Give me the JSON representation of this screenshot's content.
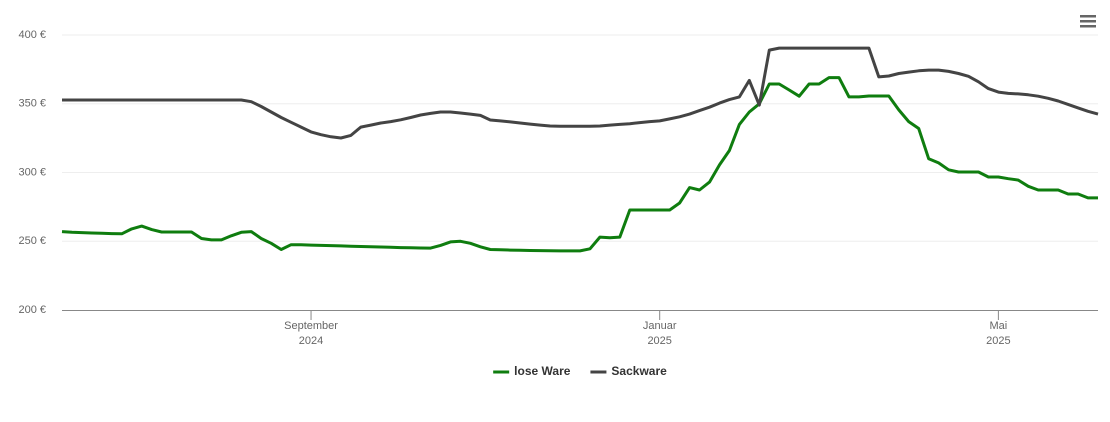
{
  "chart_data": {
    "type": "line",
    "categories": [
      null,
      null,
      null,
      null,
      null,
      null,
      null,
      null,
      null,
      null,
      null,
      null,
      null,
      null,
      null,
      null,
      null,
      null,
      null,
      null,
      null,
      null,
      null,
      null,
      null,
      [
        "September",
        "2024"
      ],
      null,
      null,
      null,
      null,
      null,
      null,
      null,
      null,
      null,
      null,
      null,
      null,
      null,
      null,
      null,
      null,
      null,
      null,
      null,
      null,
      null,
      null,
      null,
      null,
      null,
      null,
      null,
      null,
      null,
      null,
      null,
      null,
      null,
      null,
      [
        "Januar",
        "2025"
      ],
      null,
      null,
      null,
      null,
      null,
      null,
      null,
      null,
      null,
      null,
      null,
      null,
      null,
      null,
      null,
      null,
      null,
      null,
      null,
      null,
      null,
      null,
      null,
      null,
      null,
      null,
      null,
      null,
      null,
      null,
      null,
      null,
      null,
      [
        "Mai",
        "2025"
      ],
      null,
      null,
      null,
      null,
      null,
      null,
      null,
      null,
      null,
      null
    ],
    "series": [
      {
        "name": "lose Ware",
        "color": "#0f7d0f",
        "values": [
          257,
          256.5,
          256.3,
          256,
          255.8,
          255.6,
          255.4,
          259,
          261,
          258.5,
          256.7,
          256.7,
          256.7,
          256.7,
          252,
          251,
          251,
          254,
          256.5,
          257,
          252,
          248.5,
          244,
          247.5,
          247.4,
          247.2,
          247,
          246.8,
          246.6,
          246.4,
          246.2,
          246,
          245.8,
          245.6,
          245.4,
          245.3,
          245.1,
          245,
          247,
          249.5,
          250,
          248.5,
          246,
          244,
          243.8,
          243.6,
          243.4,
          243.3,
          243.2,
          243.1,
          243,
          243,
          243,
          244.5,
          253,
          252.5,
          253,
          272.7,
          272.7,
          272.7,
          272.7,
          272.7,
          277.8,
          289,
          287.3,
          293,
          305.5,
          316,
          335,
          344,
          350,
          364.4,
          364.4,
          360,
          355.5,
          364.4,
          364.4,
          369,
          369,
          355,
          355,
          355.6,
          355.6,
          355.6,
          345.5,
          337,
          332,
          310,
          307,
          302,
          300.4,
          300.4,
          300.4,
          296.7,
          296.7,
          295.5,
          294.5,
          290,
          287.3,
          287.3,
          287.3,
          284.4,
          284.4,
          281.5,
          281.5
        ]
      },
      {
        "name": "Sackware",
        "color": "#444444",
        "values": [
          352.7,
          352.7,
          352.7,
          352.7,
          352.7,
          352.7,
          352.7,
          352.7,
          352.7,
          352.7,
          352.7,
          352.7,
          352.7,
          352.7,
          352.7,
          352.7,
          352.7,
          352.7,
          352.7,
          351.5,
          348,
          344,
          340,
          336.5,
          333,
          329.5,
          327.5,
          326,
          325.1,
          327,
          333,
          334.5,
          336,
          337,
          338.3,
          340,
          341.8,
          343,
          344,
          344,
          343.3,
          342.5,
          341.5,
          338.2,
          337.5,
          336.8,
          336,
          335.2,
          334.5,
          333.8,
          333.7,
          333.6,
          333.6,
          333.7,
          333.8,
          334.5,
          335,
          335.5,
          336.3,
          337,
          337.5,
          339,
          340.5,
          342.5,
          345,
          347.5,
          350.5,
          353,
          355,
          367,
          349,
          389,
          390.5,
          390.5,
          390.5,
          390.5,
          390.5,
          390.5,
          390.5,
          390.5,
          390.5,
          390.5,
          369.5,
          370.2,
          372,
          373,
          374,
          374.5,
          374.5,
          373.5,
          372,
          370,
          366,
          361,
          358.5,
          357.5,
          357.2,
          356.5,
          355.5,
          354,
          352,
          349.5,
          347,
          344.5,
          342.5
        ]
      }
    ],
    "ylim": [
      200,
      400
    ],
    "yticks": [
      {
        "value": 200,
        "label": "200 €"
      },
      {
        "value": 250,
        "label": "250 €"
      },
      {
        "value": 300,
        "label": "300 €"
      },
      {
        "value": 350,
        "label": "350 €"
      },
      {
        "value": 400,
        "label": "400 €"
      }
    ],
    "grid": true,
    "legend": "bottom"
  }
}
